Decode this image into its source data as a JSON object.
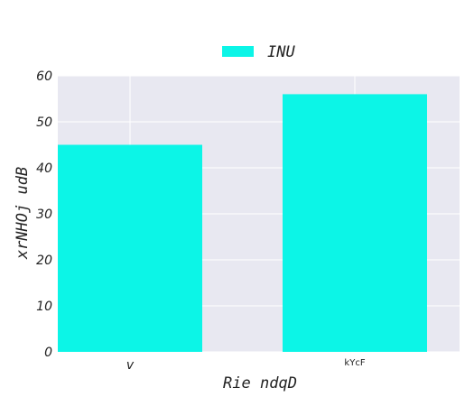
{
  "chart_data": {
    "type": "bar",
    "categories": [
      "v",
      "kYcF"
    ],
    "series": [
      {
        "name": "INU",
        "values": [
          45,
          56
        ]
      }
    ],
    "xlabel": "Rie ndqD",
    "ylabel": "xrNHOj udB",
    "ylim": [
      0,
      60
    ],
    "yticks": [
      0,
      10,
      20,
      30,
      40,
      50,
      60
    ],
    "grid": true,
    "legend_position": "top-center",
    "colors": {
      "bar": "#0cf5e7",
      "plot_background": "#e8e8f1",
      "grid": "#ffffff"
    }
  }
}
